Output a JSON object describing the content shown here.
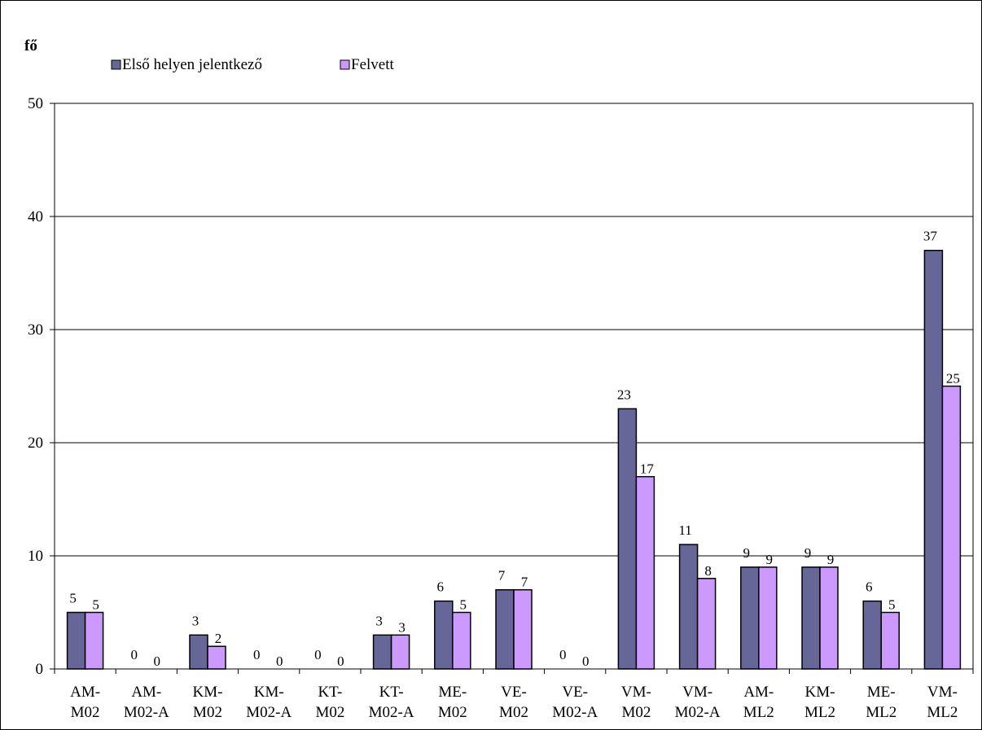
{
  "chart_data": {
    "type": "bar",
    "ylabel": "fő",
    "ylim": [
      0,
      50
    ],
    "yticks": [
      0,
      10,
      20,
      30,
      40,
      50
    ],
    "grid": true,
    "legend_position": "top-left",
    "categories": [
      [
        "AM-",
        "M02"
      ],
      [
        "AM-",
        "M02-A"
      ],
      [
        "KM-",
        "M02"
      ],
      [
        "KM-",
        "M02-A"
      ],
      [
        "KT-",
        "M02"
      ],
      [
        "KT-",
        "M02-A"
      ],
      [
        "ME-",
        "M02"
      ],
      [
        "VE-",
        "M02"
      ],
      [
        "VE-",
        "M02-A"
      ],
      [
        "VM-",
        "M02"
      ],
      [
        "VM-",
        "M02-A"
      ],
      [
        "AM-",
        "ML2"
      ],
      [
        "KM-",
        "ML2"
      ],
      [
        "ME-",
        "ML2"
      ],
      [
        "VM-",
        "ML2"
      ]
    ],
    "series": [
      {
        "name": "Első helyen jelentkező",
        "color": "#666699",
        "values": [
          5,
          0,
          3,
          0,
          0,
          3,
          6,
          7,
          0,
          23,
          11,
          9,
          9,
          6,
          37
        ]
      },
      {
        "name": "Felvett",
        "color": "#CC99FF",
        "values": [
          5,
          0,
          2,
          0,
          0,
          3,
          5,
          7,
          0,
          17,
          8,
          9,
          9,
          5,
          25
        ]
      }
    ]
  }
}
